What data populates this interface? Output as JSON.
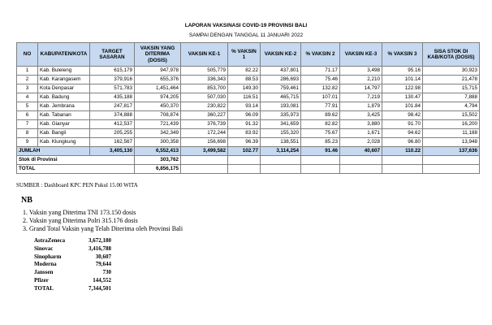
{
  "header": {
    "title": "LAPORAN VAKSINASI COVID-19 PROVINSI BALI",
    "subtitle": "SAMPAI DENGAN TANGGAL 11 JANUARI 2022"
  },
  "table": {
    "columns": [
      "NO",
      "KABUPATEN/KOTA",
      "TARGET SASARAN",
      "VAKSIN YANG DITERIMA (DOSIS)",
      "VAKSIN KE-1",
      "% VAKSIN 1",
      "VAKSIN KE-2",
      "% VAKSIN 2",
      "VAKSIN KE-3",
      "% VAKSIN 3",
      "SISA STOK DI KAB/KOTA (DOSIS)"
    ],
    "rows": [
      [
        "1",
        "Kab. Buleleng",
        "615,179",
        "947,978",
        "505,779",
        "82.22",
        "437,801",
        "71.17",
        "3,498",
        "95.16",
        "30,923"
      ],
      [
        "2",
        "Kab. Karangasem",
        "379,916",
        "655,376",
        "336,343",
        "88.53",
        "286,693",
        "75.46",
        "2,210",
        "101.14",
        "21,478"
      ],
      [
        "3",
        "Kota Denpasar",
        "571,783",
        "1,451,464",
        "853,700",
        "149.30",
        "759,461",
        "132.82",
        "14,797",
        "122.98",
        "15,715"
      ],
      [
        "4",
        "Kab. Badung",
        "435,188",
        "974,205",
        "507,030",
        "116.51",
        "465,715",
        "107.01",
        "7,219",
        "130.47",
        "7,888"
      ],
      [
        "5",
        "Kab. Jembrana",
        "247,817",
        "450,370",
        "230,822",
        "93.14",
        "193,081",
        "77.91",
        "1,879",
        "101.84",
        "4,794"
      ],
      [
        "6",
        "Kab. Tabanan",
        "374,888",
        "708,874",
        "360,227",
        "96.09",
        "335,973",
        "89.62",
        "3,425",
        "98.42",
        "15,502"
      ],
      [
        "7",
        "Kab. Gianyar",
        "412,537",
        "721,439",
        "376,739",
        "91.32",
        "341,659",
        "82.82",
        "3,880",
        "91.70",
        "16,200"
      ],
      [
        "8",
        "Kab. Bangli",
        "205,255",
        "342,349",
        "172,244",
        "83.92",
        "155,320",
        "75.67",
        "1,671",
        "94.62",
        "11,188"
      ],
      [
        "9",
        "Kab. Klungkung",
        "162,567",
        "300,358",
        "156,698",
        "96.39",
        "138,551",
        "85.23",
        "2,028",
        "96.80",
        "13,948"
      ]
    ],
    "total_row": [
      "JUMLAH",
      "3,405,130",
      "6,552,413",
      "3,499,582",
      "102.77",
      "3,114,254",
      "91.46",
      "40,607",
      "110.22",
      "137,636"
    ],
    "stock_row": [
      "Stok di Provinsi",
      "303,762"
    ],
    "grand_row": [
      "TOTAL",
      "6,856,175"
    ]
  },
  "source": "SUMBER : Dashboard KPC PEN Pukul 15.00 WITA",
  "notes": {
    "title": "NB",
    "items": [
      "Vaksin yang Diterima TNI 173.150 dosis",
      "Vaksin yang Diterima Polri 315.176 dosis",
      "Grand Total Vaksin yang Telah Diterima oleh Provinsi Bali"
    ],
    "breakdown": [
      [
        "AstraZeneca",
        "3,672,180"
      ],
      [
        "Sinovac",
        "3,416,788"
      ],
      [
        "Sinopharm",
        "30,607"
      ],
      [
        "Moderna",
        "79,644"
      ],
      [
        "Janssen",
        "730"
      ],
      [
        "Pfizer",
        "144,552"
      ],
      [
        "TOTAL",
        "7,344,501"
      ]
    ]
  }
}
